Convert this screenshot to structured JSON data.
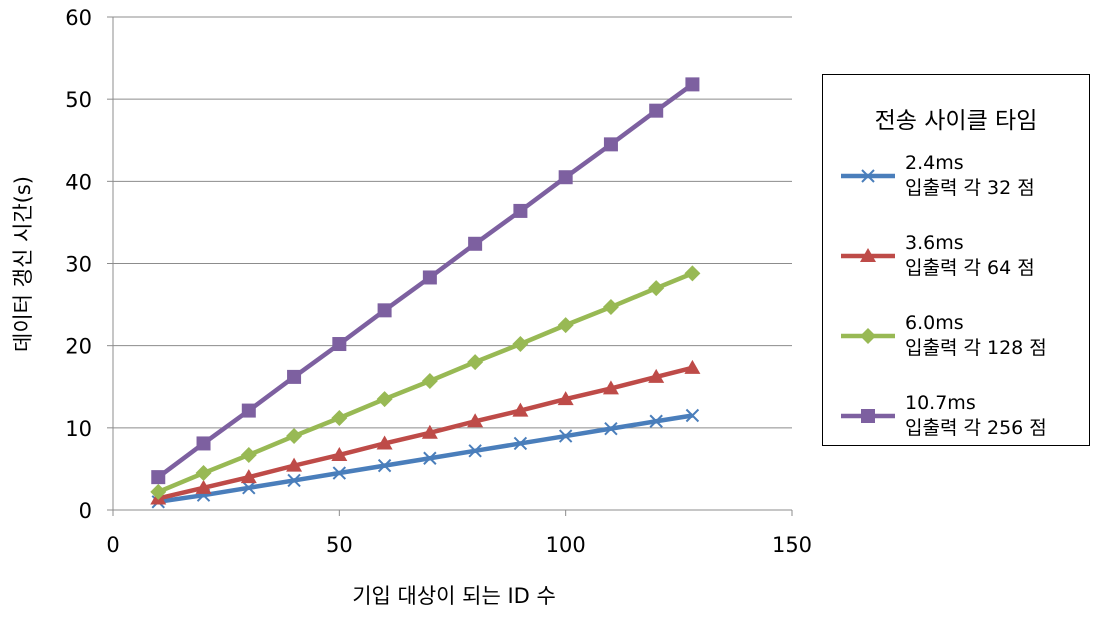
{
  "chart_data": {
    "type": "line",
    "title": "",
    "xlabel": "기입 대상이 되는 ID 수",
    "ylabel": "데이터 갱신 시간(s)",
    "xlim": [
      0,
      150
    ],
    "ylim": [
      0,
      60
    ],
    "xticks": [
      "0",
      "50",
      "100",
      "150"
    ],
    "yticks": [
      "0",
      "10",
      "20",
      "30",
      "40",
      "50",
      "60"
    ],
    "grid": "horizontal",
    "legend_position": "right",
    "legend_title": "전송 사이클 타임",
    "x": [
      10,
      20,
      30,
      40,
      50,
      60,
      70,
      80,
      90,
      100,
      110,
      120,
      128
    ],
    "series": [
      {
        "name": "2.4ms",
        "name_line2": "입출력 각 32 점",
        "color": "#4a7ebb",
        "marker": "x",
        "values": [
          1.0,
          1.8,
          2.7,
          3.6,
          4.5,
          5.4,
          6.3,
          7.2,
          8.1,
          9.0,
          9.9,
          10.8,
          11.5
        ]
      },
      {
        "name": "3.6ms",
        "name_line2": "입출력 각 64 점",
        "color": "#be4b48",
        "marker": "triangle",
        "values": [
          1.4,
          2.7,
          4.0,
          5.4,
          6.7,
          8.1,
          9.4,
          10.8,
          12.1,
          13.5,
          14.8,
          16.2,
          17.3
        ]
      },
      {
        "name": "6.0ms",
        "name_line2": "입출력 각 128 점",
        "color": "#98b954",
        "marker": "diamond",
        "values": [
          2.2,
          4.5,
          6.7,
          9.0,
          11.2,
          13.5,
          15.7,
          18.0,
          20.2,
          22.5,
          24.7,
          27.0,
          28.8
        ]
      },
      {
        "name": "10.7ms",
        "name_line2": "입출력 각 256 점",
        "color": "#7d60a0",
        "marker": "square",
        "values": [
          4.0,
          8.1,
          12.1,
          16.2,
          20.2,
          24.3,
          28.3,
          32.4,
          36.4,
          40.5,
          44.5,
          48.6,
          51.8
        ]
      }
    ]
  }
}
